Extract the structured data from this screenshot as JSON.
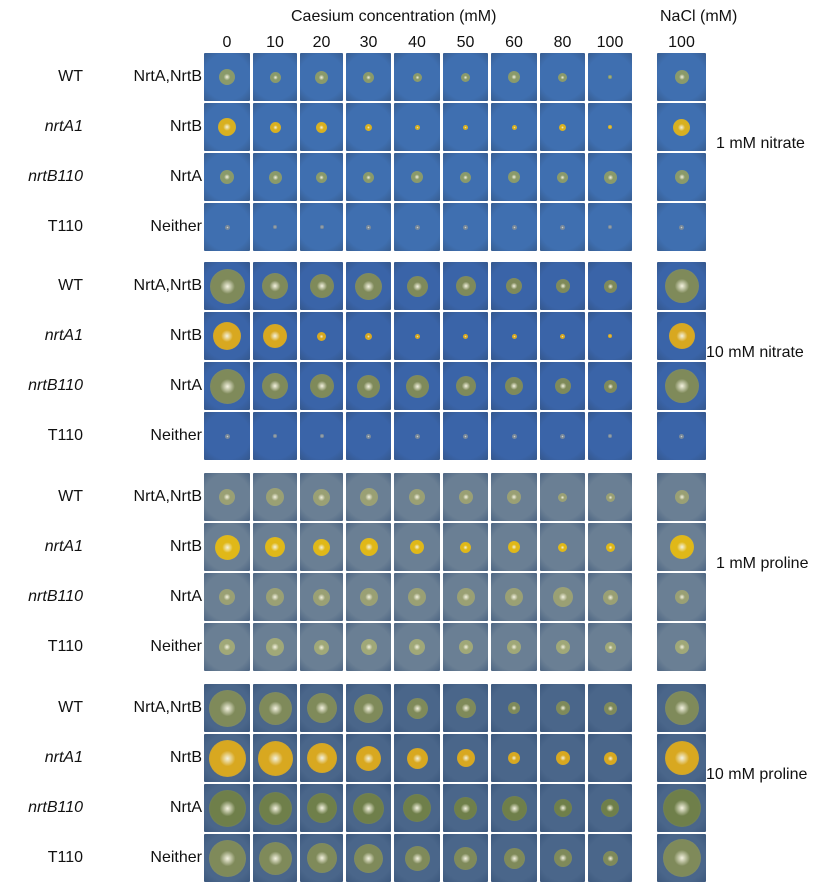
{
  "header": {
    "caesium_title": "Caesium concentration (mM)",
    "nacl_title": "NaCl (mM)",
    "caesium_columns": [
      "0",
      "10",
      "20",
      "30",
      "40",
      "50",
      "60",
      "80",
      "100"
    ],
    "nacl_column": "100"
  },
  "groups": [
    {
      "condition": "1 mM nitrate",
      "background": "#3f6fb0",
      "rows": [
        {
          "strain": "WT",
          "italic": false,
          "transporters": "NrtA,NrtB",
          "colony": "#8a9a6a",
          "sizes": [
            0.35,
            0.25,
            0.3,
            0.25,
            0.2,
            0.2,
            0.25,
            0.2,
            0.1
          ],
          "nacl": 0.3
        },
        {
          "strain": "nrtA1",
          "italic": true,
          "transporters": "NrtB",
          "colony": "#d8b020",
          "sizes": [
            0.4,
            0.25,
            0.25,
            0.15,
            0.1,
            0.1,
            0.1,
            0.15,
            0.1
          ],
          "nacl": 0.35
        },
        {
          "strain": "nrtB110",
          "italic": true,
          "transporters": "NrtA",
          "colony": "#8a9a6a",
          "sizes": [
            0.3,
            0.3,
            0.25,
            0.25,
            0.25,
            0.25,
            0.25,
            0.25,
            0.3
          ],
          "nacl": 0.3
        },
        {
          "strain": "T110",
          "italic": false,
          "transporters": "Neither",
          "colony": "#7a8a9a",
          "sizes": [
            0.1,
            0.1,
            0.1,
            0.1,
            0.1,
            0.1,
            0.1,
            0.1,
            0.1
          ],
          "nacl": 0.1
        }
      ]
    },
    {
      "condition": "10 mM nitrate",
      "background": "#3a64a8",
      "rows": [
        {
          "strain": "WT",
          "italic": false,
          "transporters": "NrtA,NrtB",
          "colony": "#7f8a5a",
          "sizes": [
            0.75,
            0.6,
            0.55,
            0.6,
            0.45,
            0.45,
            0.35,
            0.3,
            0.3
          ],
          "nacl": 0.7
        },
        {
          "strain": "nrtA1",
          "italic": true,
          "transporters": "NrtB",
          "colony": "#d8a820",
          "sizes": [
            0.6,
            0.55,
            0.2,
            0.15,
            0.1,
            0.1,
            0.1,
            0.1,
            0.1
          ],
          "nacl": 0.55
        },
        {
          "strain": "nrtB110",
          "italic": true,
          "transporters": "NrtA",
          "colony": "#7f8a5a",
          "sizes": [
            0.75,
            0.6,
            0.55,
            0.5,
            0.5,
            0.45,
            0.4,
            0.35,
            0.3
          ],
          "nacl": 0.7
        },
        {
          "strain": "T110",
          "italic": false,
          "transporters": "Neither",
          "colony": "#7a8a9a",
          "sizes": [
            0.1,
            0.1,
            0.1,
            0.1,
            0.1,
            0.1,
            0.1,
            0.1,
            0.1
          ],
          "nacl": 0.1
        }
      ]
    },
    {
      "condition": "1 mM proline",
      "background": "#6a7f94",
      "rows": [
        {
          "strain": "WT",
          "italic": false,
          "transporters": "NrtA,NrtB",
          "colony": "#9aa074",
          "sizes": [
            0.35,
            0.4,
            0.4,
            0.4,
            0.35,
            0.3,
            0.3,
            0.2,
            0.2
          ],
          "nacl": 0.3
        },
        {
          "strain": "nrtA1",
          "italic": true,
          "transporters": "NrtB",
          "colony": "#e0b818",
          "sizes": [
            0.55,
            0.45,
            0.4,
            0.4,
            0.3,
            0.25,
            0.25,
            0.2,
            0.2
          ],
          "nacl": 0.5
        },
        {
          "strain": "nrtB110",
          "italic": true,
          "transporters": "NrtA",
          "colony": "#9aa074",
          "sizes": [
            0.35,
            0.4,
            0.4,
            0.4,
            0.4,
            0.4,
            0.4,
            0.45,
            0.35
          ],
          "nacl": 0.3
        },
        {
          "strain": "T110",
          "italic": false,
          "transporters": "Neither",
          "colony": "#a0a878",
          "sizes": [
            0.35,
            0.4,
            0.35,
            0.35,
            0.35,
            0.3,
            0.3,
            0.3,
            0.25
          ],
          "nacl": 0.3
        }
      ]
    },
    {
      "condition": "10 mM proline",
      "background": "#4a668a",
      "rows": [
        {
          "strain": "WT",
          "italic": false,
          "transporters": "NrtA,NrtB",
          "colony": "#7f8a5a",
          "sizes": [
            0.8,
            0.75,
            0.7,
            0.65,
            0.45,
            0.45,
            0.25,
            0.3,
            0.3
          ],
          "nacl": 0.7
        },
        {
          "strain": "nrtA1",
          "italic": true,
          "transporters": "NrtB",
          "colony": "#d8a820",
          "sizes": [
            0.8,
            0.8,
            0.7,
            0.55,
            0.45,
            0.4,
            0.25,
            0.3,
            0.3
          ],
          "nacl": 0.7
        },
        {
          "strain": "nrtB110",
          "italic": true,
          "transporters": "NrtA",
          "colony": "#6f7f4a",
          "sizes": [
            0.8,
            0.75,
            0.7,
            0.7,
            0.6,
            0.5,
            0.55,
            0.4,
            0.4
          ],
          "nacl": 0.8
        },
        {
          "strain": "T110",
          "italic": false,
          "transporters": "Neither",
          "colony": "#7f8a5a",
          "sizes": [
            0.8,
            0.75,
            0.7,
            0.65,
            0.55,
            0.5,
            0.45,
            0.4,
            0.35
          ],
          "nacl": 0.8
        }
      ]
    }
  ]
}
